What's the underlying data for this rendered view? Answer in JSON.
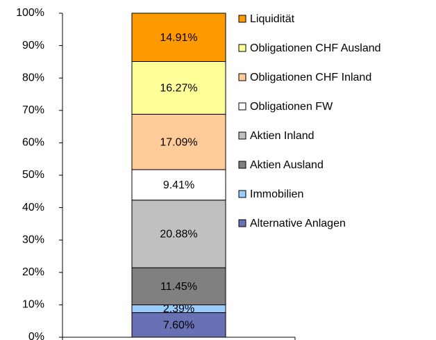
{
  "chart_data": {
    "type": "stacked_bar",
    "categories": [
      null
    ],
    "series": [
      {
        "name": "Alternative Anlagen",
        "color": "#6a70b4",
        "values": [
          7.6
        ],
        "value_labels": [
          "7.60%"
        ]
      },
      {
        "name": "Immobilien",
        "color": "#99ccff",
        "values": [
          2.39
        ],
        "value_labels": [
          "2.39%"
        ]
      },
      {
        "name": "Aktien Ausland",
        "color": "#808080",
        "values": [
          11.45
        ],
        "value_labels": [
          "11.45%"
        ]
      },
      {
        "name": "Aktien Inland",
        "color": "#c0c0c0",
        "values": [
          20.88
        ],
        "value_labels": [
          "20.88%"
        ]
      },
      {
        "name": "Obligationen FW",
        "color": "#ffffff",
        "values": [
          9.41
        ],
        "value_labels": [
          "9.41%"
        ]
      },
      {
        "name": "Obligationen CHF Inland",
        "color": "#ffcc99",
        "values": [
          17.09
        ],
        "value_labels": [
          "17.09%"
        ]
      },
      {
        "name": "Obligationen CHF Ausland",
        "color": "#ffff99",
        "values": [
          16.27
        ],
        "value_labels": [
          "16.27%"
        ]
      },
      {
        "name": "Liquidität",
        "color": "#ff9900",
        "values": [
          14.91
        ],
        "value_labels": [
          "14.91%"
        ]
      }
    ],
    "ylim": [
      0,
      100
    ],
    "yticks": [
      {
        "value": 0,
        "label": "0%"
      },
      {
        "value": 10,
        "label": "10%"
      },
      {
        "value": 20,
        "label": "20%"
      },
      {
        "value": 30,
        "label": "30%"
      },
      {
        "value": 40,
        "label": "40%"
      },
      {
        "value": 50,
        "label": "50%"
      },
      {
        "value": 60,
        "label": "60%"
      },
      {
        "value": 70,
        "label": "70%"
      },
      {
        "value": 80,
        "label": "80%"
      },
      {
        "value": 90,
        "label": "90%"
      },
      {
        "value": 100,
        "label": "100%"
      }
    ],
    "grid": false,
    "legend": "right"
  }
}
